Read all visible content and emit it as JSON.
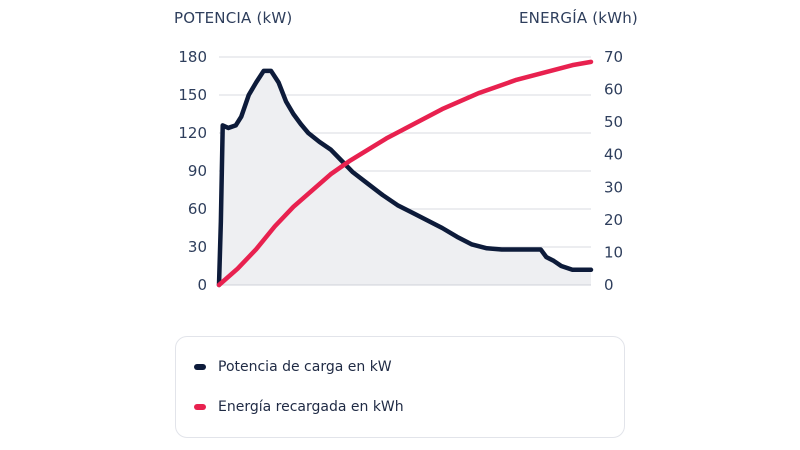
{
  "chart_data": {
    "type": "line",
    "left_axis": {
      "title": "POTENCIA (kW)",
      "min": 0,
      "max": 180,
      "ticks": [
        0,
        30,
        60,
        90,
        120,
        150,
        180
      ]
    },
    "right_axis": {
      "title": "ENERGÍA (kWh)",
      "min": 0,
      "max": 70,
      "ticks": [
        0,
        10,
        20,
        30,
        40,
        50,
        60,
        70
      ]
    },
    "x_domain": [
      0,
      100
    ],
    "grid": true,
    "series": [
      {
        "name": "Potencia de carga en kW",
        "axis": "left",
        "color": "#0d1b3a",
        "fill": "#eeeff2",
        "points": [
          [
            0,
            0
          ],
          [
            0.5,
            50
          ],
          [
            1,
            126
          ],
          [
            2.5,
            124
          ],
          [
            4.5,
            126
          ],
          [
            6,
            133
          ],
          [
            8,
            150
          ],
          [
            10,
            160
          ],
          [
            12,
            169
          ],
          [
            14,
            169
          ],
          [
            16,
            160
          ],
          [
            18,
            145
          ],
          [
            20,
            135
          ],
          [
            22,
            127
          ],
          [
            24,
            120
          ],
          [
            27,
            113
          ],
          [
            30,
            107
          ],
          [
            33,
            98
          ],
          [
            36,
            89
          ],
          [
            40,
            80
          ],
          [
            44,
            71
          ],
          [
            48,
            63
          ],
          [
            52,
            57
          ],
          [
            56,
            51
          ],
          [
            60,
            45
          ],
          [
            64,
            38
          ],
          [
            68,
            32
          ],
          [
            72,
            29
          ],
          [
            76,
            28
          ],
          [
            80,
            28
          ],
          [
            84,
            28
          ],
          [
            86.5,
            28
          ],
          [
            88,
            22
          ],
          [
            90,
            19
          ],
          [
            92,
            15
          ],
          [
            95,
            12
          ],
          [
            100,
            12
          ]
        ]
      },
      {
        "name": "Energía recargada en kWh",
        "axis": "right",
        "color": "#e8214f",
        "points": [
          [
            0,
            0
          ],
          [
            5,
            5
          ],
          [
            10,
            11
          ],
          [
            15,
            18
          ],
          [
            20,
            24
          ],
          [
            25,
            29
          ],
          [
            30,
            34
          ],
          [
            35,
            38
          ],
          [
            40,
            41.5
          ],
          [
            45,
            45
          ],
          [
            50,
            48
          ],
          [
            55,
            51
          ],
          [
            60,
            54
          ],
          [
            65,
            56.5
          ],
          [
            70,
            59
          ],
          [
            75,
            61
          ],
          [
            80,
            63
          ],
          [
            85,
            64.5
          ],
          [
            90,
            66
          ],
          [
            95,
            67.5
          ],
          [
            100,
            68.5
          ]
        ]
      }
    ]
  },
  "legend": {
    "items": [
      {
        "label": "Potencia de carga en kW",
        "color": "#0d1b3a"
      },
      {
        "label": "Energía recargada en kWh",
        "color": "#e8214f"
      }
    ]
  }
}
